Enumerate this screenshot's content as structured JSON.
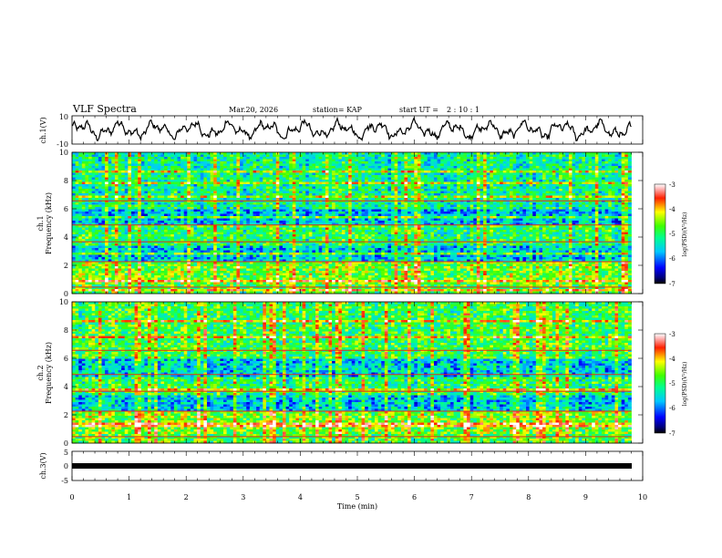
{
  "header": {
    "title": "VLF Spectra",
    "date": "Mar.20, 2026",
    "station": "station= KAP",
    "start_label": "start  UT =",
    "start_time": "2 : 10 : 1"
  },
  "chart_data": [
    {
      "type": "line",
      "name": "ch1-waveform",
      "ylabel": "ch.1(V)",
      "ylim": [
        -10,
        10
      ],
      "yticks": [
        "10",
        "-10"
      ],
      "description_values": "noisy waveform oscillating roughly between -7 and 7 V"
    },
    {
      "type": "heatmap",
      "name": "ch1-spectrogram",
      "ylabel_lines": [
        "ch.1",
        "Frequency  (kHz)"
      ],
      "ylim": [
        0,
        10
      ],
      "yticks": [
        "0",
        "2",
        "4",
        "6",
        "8",
        "10"
      ],
      "colorbar": {
        "label": "log(PSD)(V²/Hz)",
        "range": [
          -7,
          -3
        ],
        "ticks": [
          "-3",
          "-4",
          "-5",
          "-6",
          "-7"
        ]
      },
      "bands_khz": [
        {
          "from": 0,
          "to": 0.6,
          "level": -4.8
        },
        {
          "from": 0.6,
          "to": 2.2,
          "level": -4.6
        },
        {
          "from": 2.2,
          "to": 3.4,
          "level": -5.6
        },
        {
          "from": 3.4,
          "to": 4.6,
          "level": -5.0
        },
        {
          "from": 4.6,
          "to": 6.0,
          "level": -5.7
        },
        {
          "from": 6.0,
          "to": 10,
          "level": -5.2
        }
      ]
    },
    {
      "type": "heatmap",
      "name": "ch2-spectrogram",
      "ylabel_lines": [
        "ch.2",
        "Frequency  (kHz)"
      ],
      "ylim": [
        0,
        10
      ],
      "yticks": [
        "0",
        "2",
        "4",
        "6",
        "8",
        "10"
      ],
      "colorbar": {
        "label": "log(PSD)(V²/Hz)",
        "range": [
          -7,
          -3
        ],
        "ticks": [
          "-3",
          "-4",
          "-5",
          "-6",
          "-7"
        ]
      },
      "bands_khz": [
        {
          "from": 0,
          "to": 0.6,
          "level": -4.8
        },
        {
          "from": 0.6,
          "to": 2.2,
          "level": -4.6
        },
        {
          "from": 2.2,
          "to": 3.4,
          "level": -5.6
        },
        {
          "from": 3.4,
          "to": 4.6,
          "level": -5.0
        },
        {
          "from": 4.6,
          "to": 6.0,
          "level": -5.6
        },
        {
          "from": 6.0,
          "to": 10,
          "level": -4.9
        }
      ]
    },
    {
      "type": "line",
      "name": "ch3-waveform",
      "ylabel": "ch.3(V)",
      "ylim": [
        -5,
        5
      ],
      "yticks": [
        "5",
        "0",
        "-5"
      ],
      "values_note": "flat thick band near -1 V"
    }
  ],
  "xaxis": {
    "label": "Time  (min)",
    "range": [
      0,
      10
    ],
    "ticks": [
      "0",
      "1",
      "2",
      "3",
      "4",
      "5",
      "6",
      "7",
      "8",
      "9",
      "10"
    ],
    "data_end_min": 9.8
  }
}
